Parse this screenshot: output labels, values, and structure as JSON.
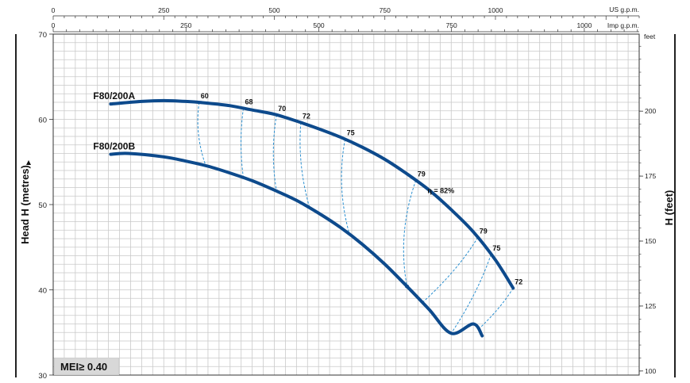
{
  "chart_data": {
    "type": "line",
    "title": "",
    "ylabel": "Head H (metres)",
    "ylabel_right": "H (feet)",
    "ylim": [
      30,
      70
    ],
    "yticks": [
      30,
      40,
      50,
      60,
      70
    ],
    "y_right_unit": "feet",
    "y_right_ticks": [
      100,
      125,
      150,
      175,
      200
    ],
    "x_top_us_unit": "US g.p.m.",
    "x_top_us_ticks": [
      0,
      250,
      500,
      750,
      1000
    ],
    "x_top_us_range": [
      0,
      1325
    ],
    "x_top_imp_unit": "Imp g.p.m.",
    "x_top_imp_ticks": [
      0,
      250,
      500,
      750,
      1000
    ],
    "grid": true,
    "series": [
      {
        "name": "F80/200A",
        "x_us_gpm": [
          130,
          200,
          250,
          300,
          350,
          400,
          450,
          500,
          550,
          600,
          650,
          700,
          750,
          800,
          850,
          900,
          950,
          1000,
          1040
        ],
        "y_m": [
          61.8,
          62.1,
          62.2,
          62.1,
          61.9,
          61.6,
          61.1,
          60.6,
          59.8,
          58.9,
          57.9,
          56.7,
          55.3,
          53.6,
          51.7,
          49.4,
          46.8,
          43.5,
          40.2
        ]
      },
      {
        "name": "F80/200B",
        "x_us_gpm": [
          130,
          170,
          250,
          300,
          350,
          400,
          450,
          500,
          550,
          600,
          650,
          700,
          750,
          800,
          850,
          900,
          950,
          970
        ],
        "y_m": [
          55.9,
          56.0,
          55.6,
          55.1,
          54.5,
          53.7,
          52.8,
          51.7,
          50.5,
          49.0,
          47.3,
          45.3,
          43.0,
          40.4,
          37.7,
          34.9,
          36.0,
          34.6
        ]
      }
    ],
    "efficiency_labels": [
      "60",
      "68",
      "70",
      "72",
      "75",
      "79",
      "79",
      "75",
      "72"
    ],
    "efficiency_annotation": "η = 82%",
    "mei_label": "MEI≥ 0.40"
  }
}
